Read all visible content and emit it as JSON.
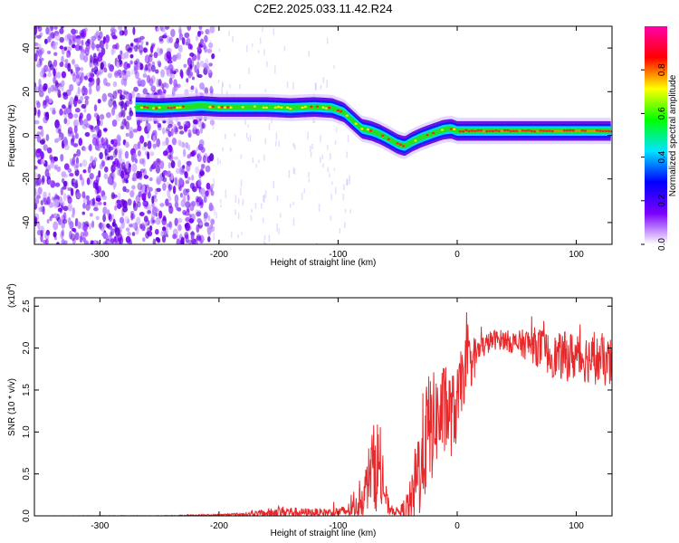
{
  "title": "C2E2.2025.033.11.42.R24",
  "chart_data": [
    {
      "type": "heatmap",
      "name": "spectrogram",
      "xlabel": "Height of straight line (km)",
      "ylabel": "Frequency (Hz)",
      "xlim": [
        -355,
        130
      ],
      "ylim": [
        -50,
        50
      ],
      "xticks": [
        -300,
        -200,
        -100,
        0,
        100
      ],
      "yticks": [
        -40,
        -20,
        0,
        20,
        40
      ],
      "colorbar": {
        "label": "Normalized spectral amplitude",
        "range": [
          0,
          1
        ],
        "ticks": [
          "0.0",
          "0.2",
          "0.4",
          "0.6",
          "0.8"
        ],
        "tick_values": [
          0,
          0.2,
          0.4,
          0.6,
          0.8
        ],
        "colormap": [
          "#ffffff",
          "#7a00ff",
          "#0000ff",
          "#00e5ff",
          "#00ff00",
          "#ffff00",
          "#ff0000",
          "#ff00aa"
        ]
      },
      "ridge": {
        "x": [
          -270,
          -250,
          -230,
          -215,
          -200,
          -180,
          -160,
          -140,
          -120,
          -105,
          -95,
          -88,
          -80,
          -72,
          -65,
          -58,
          -50,
          -44,
          -38,
          -30,
          -20,
          -12,
          -5,
          0,
          20,
          50,
          80,
          110,
          130
        ],
        "frequency": [
          13,
          12.5,
          13,
          13.5,
          13,
          13,
          13,
          12.5,
          13,
          12.5,
          10.5,
          7,
          3,
          2,
          0.5,
          -1.5,
          -4,
          -5,
          -3,
          -1,
          1,
          2.5,
          3,
          2,
          2,
          2,
          2,
          2,
          2
        ]
      }
    },
    {
      "type": "line",
      "name": "snr",
      "xlabel": "Height of straight line (km)",
      "ylabel": "SNR (10 * v/v)",
      "y_multiplier": "(x10",
      "y_multiplier_exp": "4",
      "y_multiplier_close": ")",
      "xlim": [
        -355,
        130
      ],
      "ylim": [
        0,
        2.6
      ],
      "xticks": [
        -300,
        -200,
        -100,
        0,
        100
      ],
      "yticks": [
        "0.0",
        "0.5",
        "1.0",
        "1.5",
        "2.0",
        "2.5"
      ],
      "ytick_values": [
        0,
        0.5,
        1,
        1.5,
        2,
        2.5
      ],
      "color": "#e8282a",
      "envelope": {
        "x": [
          -355,
          -250,
          -200,
          -180,
          -160,
          -145,
          -130,
          -110,
          -95,
          -85,
          -78,
          -72,
          -66,
          -62,
          -58,
          -54,
          -48,
          -42,
          -38,
          -34,
          -30,
          -26,
          -22,
          -18,
          -14,
          -10,
          -5,
          0,
          5,
          10,
          20,
          30,
          40,
          50,
          60,
          70,
          80,
          90,
          100,
          110,
          120,
          130
        ],
        "base": [
          0.0,
          0.0,
          0.01,
          0.02,
          0.03,
          0.05,
          0.04,
          0.04,
          0.05,
          0.1,
          0.25,
          0.6,
          0.6,
          0.35,
          0.1,
          0.06,
          0.05,
          0.1,
          0.15,
          0.45,
          0.7,
          0.95,
          1.05,
          1.15,
          1.2,
          1.25,
          1.2,
          1.3,
          1.7,
          1.8,
          2.0,
          2.1,
          2.1,
          2.05,
          2.05,
          2.0,
          1.9,
          1.9,
          1.9,
          1.88,
          1.85,
          1.8
        ],
        "noise": [
          0.0,
          0.005,
          0.01,
          0.02,
          0.05,
          0.07,
          0.05,
          0.05,
          0.07,
          0.12,
          0.25,
          0.45,
          0.6,
          0.3,
          0.1,
          0.05,
          0.05,
          0.2,
          0.35,
          0.55,
          0.7,
          0.7,
          0.7,
          0.55,
          0.6,
          0.55,
          0.5,
          0.45,
          0.4,
          0.35,
          0.15,
          0.12,
          0.12,
          0.15,
          0.2,
          0.25,
          0.25,
          0.3,
          0.3,
          0.3,
          0.3,
          0.3
        ]
      }
    }
  ]
}
